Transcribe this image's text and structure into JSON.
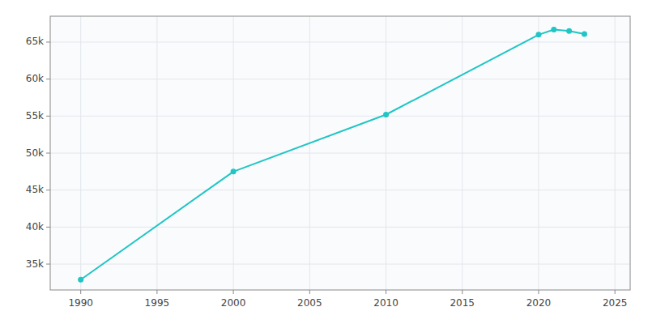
{
  "chart_data": {
    "type": "line",
    "x": [
      1990,
      2000,
      2010,
      2020,
      2021,
      2022,
      2023
    ],
    "values": [
      32900,
      47500,
      55200,
      66000,
      66700,
      66500,
      66100
    ],
    "color": "#20c5c5",
    "marker": "circle",
    "xlim": [
      1988,
      2026
    ],
    "ylim": [
      31500,
      68500
    ],
    "xticks": [
      1990,
      1995,
      2000,
      2005,
      2010,
      2015,
      2020,
      2025
    ],
    "yticks": [
      {
        "value": 35000,
        "label": "35k"
      },
      {
        "value": 40000,
        "label": "40k"
      },
      {
        "value": 45000,
        "label": "45k"
      },
      {
        "value": 50000,
        "label": "50k"
      },
      {
        "value": 55000,
        "label": "55k"
      },
      {
        "value": 60000,
        "label": "60k"
      },
      {
        "value": 65000,
        "label": "65k"
      }
    ],
    "grid": true
  }
}
